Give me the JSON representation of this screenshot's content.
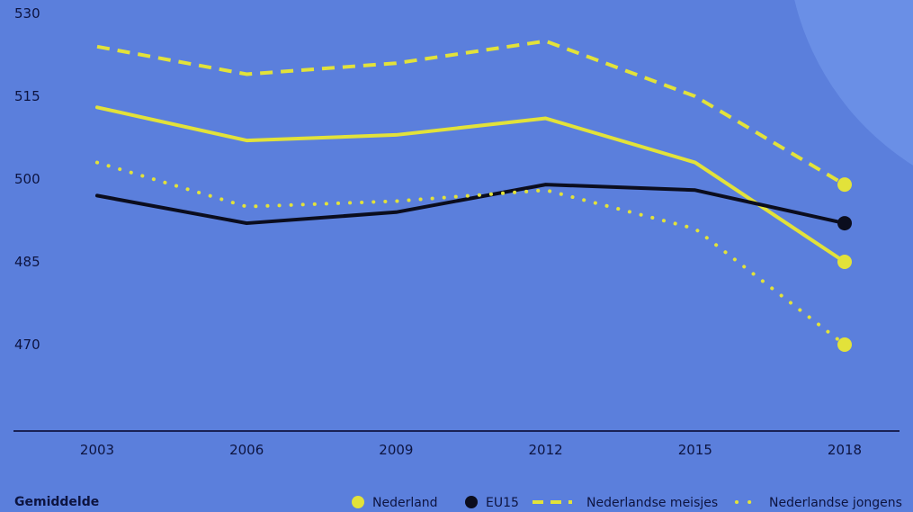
{
  "colors": {
    "background": "#5b7fdc",
    "corner_circle": "#6a8fe6",
    "yellow": "#e2e23a",
    "black": "#0b0d1e",
    "axis": "#1a2255"
  },
  "footer_label": "Gemiddelde",
  "chart_data": {
    "type": "line",
    "x": [
      "2003",
      "2006",
      "2009",
      "2012",
      "2015",
      "2018"
    ],
    "yticks": [
      530,
      515,
      500,
      485,
      470
    ],
    "ylim": [
      455,
      530
    ],
    "grid": false,
    "legend_position": "bottom-right",
    "series": [
      {
        "name": "Nederland",
        "style": "solid",
        "color": "#e2e23a",
        "values": [
          513,
          507,
          508,
          511,
          503,
          485
        ]
      },
      {
        "name": "EU15",
        "style": "solid",
        "color": "#0b0d1e",
        "values": [
          497,
          492,
          494,
          499,
          498,
          492
        ]
      },
      {
        "name": "Nederlandse meisjes",
        "style": "dashed",
        "color": "#e2e23a",
        "values": [
          524,
          519,
          521,
          525,
          515,
          499
        ]
      },
      {
        "name": "Nederlandse jongens",
        "style": "dotted",
        "color": "#e2e23a",
        "values": [
          503,
          495,
          496,
          498,
          491,
          470
        ]
      }
    ]
  }
}
